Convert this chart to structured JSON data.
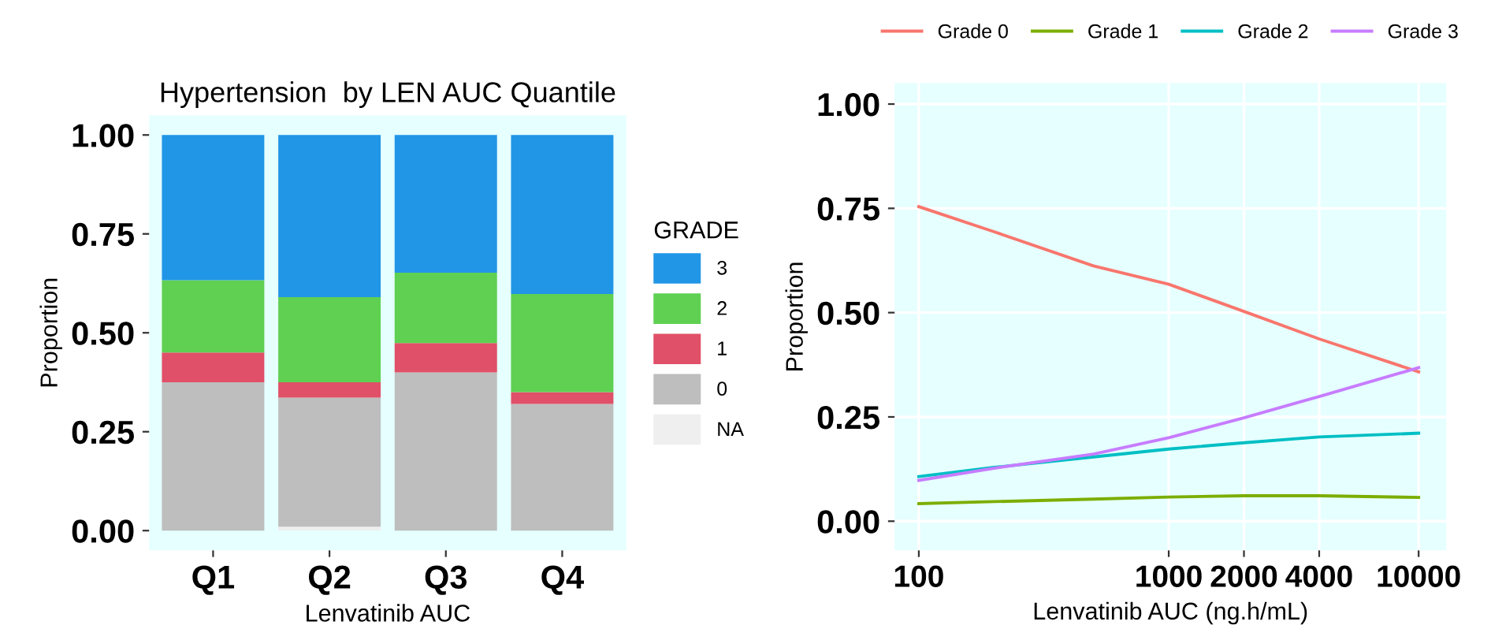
{
  "chart_data": [
    {
      "type": "bar",
      "title": "Hypertension  by LEN AUC Quantile",
      "xlabel": "Lenvatinib AUC",
      "ylabel": "Proportion",
      "legend_title": "GRADE",
      "legend": "right",
      "stacked": true,
      "grid": false,
      "categories": [
        "Q1",
        "Q2",
        "Q3",
        "Q4"
      ],
      "ylim": [
        -0.05,
        1.05
      ],
      "yticks": [
        {
          "value": 0,
          "label": "0.00"
        },
        {
          "value": 0.25,
          "label": "0.25"
        },
        {
          "value": 0.5,
          "label": "0.50"
        },
        {
          "value": 0.75,
          "label": "0.75"
        },
        {
          "value": 1,
          "label": "1.00"
        }
      ],
      "series": [
        {
          "name": "NA",
          "color": "#efefef",
          "values": [
            0,
            0.01,
            0,
            0
          ]
        },
        {
          "name": "0",
          "color": "#bebebe",
          "values": [
            0.375,
            0.326,
            0.4,
            0.32
          ]
        },
        {
          "name": "1",
          "color": "#e05068",
          "values": [
            0.075,
            0.039,
            0.074,
            0.03
          ]
        },
        {
          "name": "2",
          "color": "#5fd052",
          "values": [
            0.183,
            0.215,
            0.178,
            0.248
          ]
        },
        {
          "name": "3",
          "color": "#2196e6",
          "values": [
            0.367,
            0.41,
            0.348,
            0.402
          ]
        }
      ]
    },
    {
      "type": "line",
      "xlabel": "Lenvatinib AUC (ng.h/mL)",
      "ylabel": "Proportion",
      "legend": "top",
      "grid": true,
      "log": "x",
      "xlim": [
        80,
        12900
      ],
      "xticks": [
        100,
        1000,
        2000,
        4000,
        10000
      ],
      "ylim": [
        -0.07,
        1.05
      ],
      "yticks": [
        {
          "value": 0,
          "label": "0.00"
        },
        {
          "value": 0.25,
          "label": "0.25"
        },
        {
          "value": 0.5,
          "label": "0.50"
        },
        {
          "value": 0.75,
          "label": "0.75"
        },
        {
          "value": 1,
          "label": "1.00"
        }
      ],
      "x": [
        100,
        200,
        500,
        1000,
        2000,
        4000,
        10000
      ],
      "series": [
        {
          "name": "Grade 0",
          "color": "#f8766d",
          "values": [
            0.754,
            0.694,
            0.612,
            0.568,
            0.503,
            0.437,
            0.358
          ]
        },
        {
          "name": "Grade 1",
          "color": "#7cae00",
          "values": [
            0.042,
            0.047,
            0.053,
            0.058,
            0.061,
            0.061,
            0.057
          ]
        },
        {
          "name": "Grade 2",
          "color": "#00bfc4",
          "values": [
            0.107,
            0.129,
            0.154,
            0.173,
            0.188,
            0.202,
            0.211
          ]
        },
        {
          "name": "Grade 3",
          "color": "#c77cff",
          "values": [
            0.098,
            0.127,
            0.161,
            0.2,
            0.248,
            0.299,
            0.368
          ]
        }
      ]
    }
  ]
}
